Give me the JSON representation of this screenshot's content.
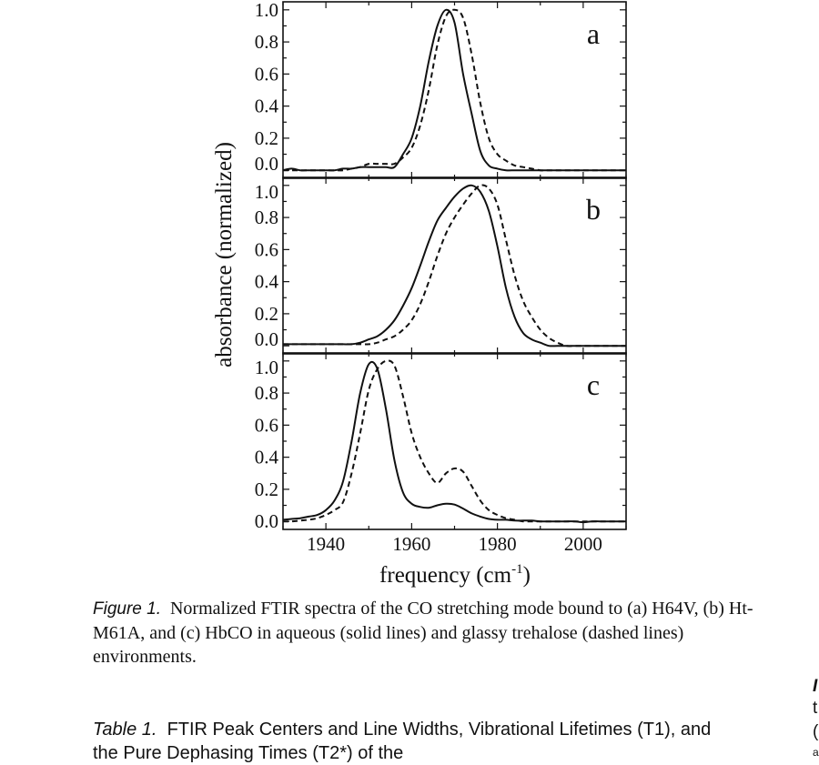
{
  "chart_data": {
    "type": "line",
    "xlabel": "frequency (cm",
    "xlabel_sup": "-1",
    "xlabel_close": ")",
    "ylabel": "absorbance (normalized)",
    "xlim": [
      1930,
      2010
    ],
    "ylim": [
      -0.05,
      1.05
    ],
    "xticks": [
      "1940",
      "1960",
      "1980",
      "2000"
    ],
    "yticks": [
      "0.0",
      "0.2",
      "0.4",
      "0.6",
      "0.8",
      "1.0"
    ],
    "grid": false,
    "x": [
      1930,
      1932,
      1934,
      1936,
      1938,
      1940,
      1942,
      1944,
      1946,
      1948,
      1950,
      1952,
      1954,
      1956,
      1958,
      1960,
      1962,
      1964,
      1966,
      1968,
      1970,
      1972,
      1974,
      1976,
      1978,
      1980,
      1982,
      1984,
      1986,
      1988,
      1990,
      1992,
      1994,
      1996,
      1998,
      2000,
      2002,
      2004,
      2006,
      2008,
      2010
    ],
    "line_styles": {
      "solid": "aqueous",
      "dashed": "glassy trehalose"
    },
    "panels": [
      {
        "label": "a",
        "series": [
          {
            "style": "solid",
            "values": [
              0,
              0.01,
              0,
              0,
              0,
              0,
              0,
              0.01,
              0.01,
              0.02,
              0.02,
              0.02,
              0.02,
              0.02,
              0.1,
              0.2,
              0.4,
              0.68,
              0.9,
              1.0,
              0.92,
              0.6,
              0.35,
              0.12,
              0.03,
              0.01,
              0,
              0,
              0,
              0,
              0,
              0,
              0,
              0,
              0,
              0,
              0,
              0,
              0,
              0,
              0
            ]
          },
          {
            "style": "dashed",
            "values": [
              0,
              0,
              0,
              0,
              0,
              0,
              0,
              0,
              0.01,
              0.02,
              0.04,
              0.04,
              0.04,
              0.04,
              0.08,
              0.14,
              0.28,
              0.5,
              0.78,
              0.96,
              1.0,
              0.95,
              0.72,
              0.42,
              0.2,
              0.1,
              0.06,
              0.03,
              0.02,
              0.01,
              0,
              0,
              0,
              0,
              0,
              0,
              0,
              0,
              0,
              0,
              0
            ]
          }
        ]
      },
      {
        "label": "b",
        "series": [
          {
            "style": "solid",
            "values": [
              0.01,
              0.01,
              0.01,
              0.01,
              0.01,
              0.01,
              0.01,
              0.01,
              0.01,
              0.02,
              0.04,
              0.06,
              0.1,
              0.16,
              0.25,
              0.36,
              0.5,
              0.65,
              0.78,
              0.86,
              0.93,
              0.98,
              1.0,
              0.96,
              0.84,
              0.62,
              0.36,
              0.18,
              0.08,
              0.04,
              0.02,
              0,
              0,
              0,
              0,
              0,
              0,
              0,
              0,
              0,
              0
            ]
          },
          {
            "style": "dashed",
            "values": [
              0.01,
              0.01,
              0.01,
              0.01,
              0.01,
              0.01,
              0.01,
              0.01,
              0.01,
              0.01,
              0.01,
              0.02,
              0.04,
              0.06,
              0.1,
              0.16,
              0.26,
              0.4,
              0.56,
              0.7,
              0.8,
              0.88,
              0.95,
              1.0,
              0.98,
              0.88,
              0.66,
              0.44,
              0.28,
              0.18,
              0.1,
              0.05,
              0.02,
              0,
              0,
              0,
              0,
              0,
              0,
              0,
              0
            ]
          }
        ]
      },
      {
        "label": "c",
        "series": [
          {
            "style": "solid",
            "values": [
              0.01,
              0.015,
              0.02,
              0.03,
              0.04,
              0.07,
              0.13,
              0.25,
              0.5,
              0.8,
              0.98,
              0.95,
              0.7,
              0.38,
              0.18,
              0.11,
              0.09,
              0.085,
              0.1,
              0.11,
              0.105,
              0.08,
              0.05,
              0.03,
              0.015,
              0.01,
              0.01,
              0.005,
              0.005,
              0.005,
              0,
              0,
              0,
              0,
              0,
              -0.005,
              0,
              0,
              0,
              0,
              0
            ]
          },
          {
            "style": "dashed",
            "values": [
              0,
              0,
              0.005,
              0.01,
              0.02,
              0.04,
              0.07,
              0.12,
              0.3,
              0.55,
              0.82,
              0.95,
              1.0,
              0.97,
              0.78,
              0.55,
              0.4,
              0.3,
              0.24,
              0.3,
              0.33,
              0.31,
              0.22,
              0.13,
              0.07,
              0.04,
              0.02,
              0.01,
              0,
              0,
              0,
              0,
              0,
              0,
              0,
              0,
              0,
              0,
              0,
              0,
              0
            ]
          }
        ]
      }
    ]
  },
  "caption": {
    "label": "Figure 1.",
    "text": "Normalized FTIR spectra of the CO stretching mode bound to (a) H64V, (b) Ht-M61A, and (c) HbCO in aqueous (solid lines) and glassy trehalose (dashed lines) environments."
  },
  "table_title": {
    "label": "Table 1.",
    "text": "FTIR Peak Centers and Line Widths, Vibrational Lifetimes (T1), and the Pure Dephasing Times (T2*) of the"
  },
  "right_column_fragments": [
    "I",
    "t",
    "(",
    "a"
  ]
}
